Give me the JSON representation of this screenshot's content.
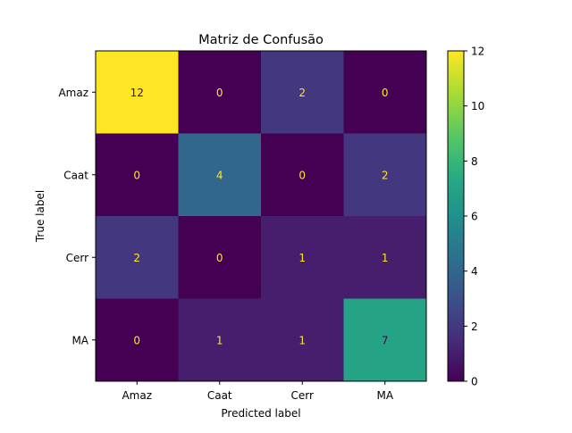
{
  "chart_data": {
    "type": "heatmap",
    "title": "Matriz de Confusão",
    "xlabel": "Predicted label",
    "ylabel": "True label",
    "x_categories": [
      "Amaz",
      "Caat",
      "Cerr",
      "MA"
    ],
    "y_categories": [
      "Amaz",
      "Caat",
      "Cerr",
      "MA"
    ],
    "values": [
      [
        12,
        0,
        2,
        0
      ],
      [
        0,
        4,
        0,
        2
      ],
      [
        2,
        0,
        1,
        1
      ],
      [
        0,
        1,
        1,
        7
      ]
    ],
    "colormap": "viridis",
    "colorbar": {
      "range": [
        0,
        12
      ],
      "ticks": [
        "0",
        "2",
        "4",
        "6",
        "8",
        "10",
        "12"
      ]
    },
    "grid": false
  }
}
